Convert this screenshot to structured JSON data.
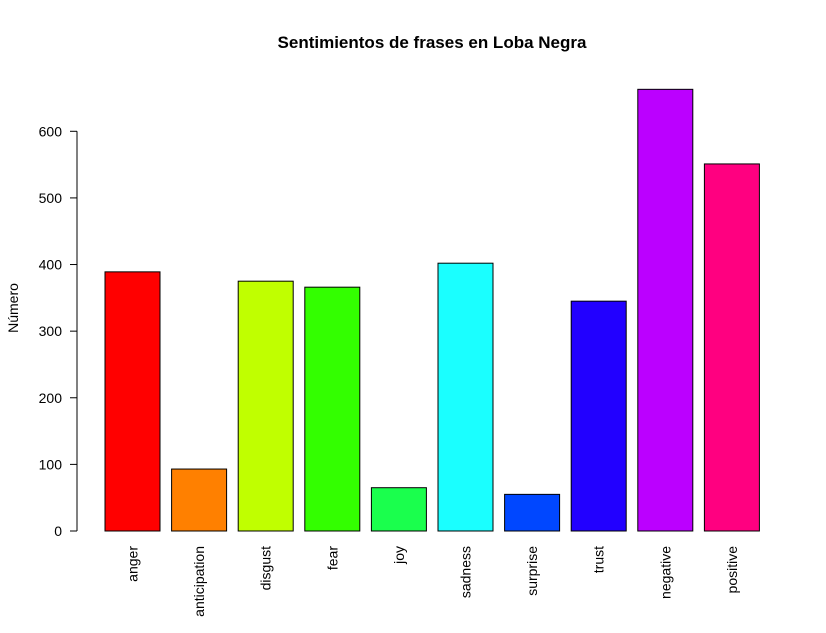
{
  "chart_data": {
    "type": "bar",
    "title": "Sentimientos de frases en Loba Negra",
    "xlabel": "",
    "ylabel": "Número",
    "ylim": [
      0,
      680
    ],
    "yticks": [
      0,
      100,
      200,
      300,
      400,
      500,
      600
    ],
    "grid": false,
    "legend": "none",
    "categories": [
      "anger",
      "anticipation",
      "disgust",
      "fear",
      "joy",
      "sadness",
      "surprise",
      "trust",
      "negative",
      "positive"
    ],
    "values": [
      389,
      93,
      375,
      366,
      65,
      402,
      55,
      345,
      663,
      551
    ],
    "colors": [
      "#ff0000",
      "#ff8000",
      "#c0ff00",
      "#33ff00",
      "#1aff4d",
      "#1affff",
      "#0047ff",
      "#2200ff",
      "#bb00ff",
      "#ff0080"
    ]
  }
}
